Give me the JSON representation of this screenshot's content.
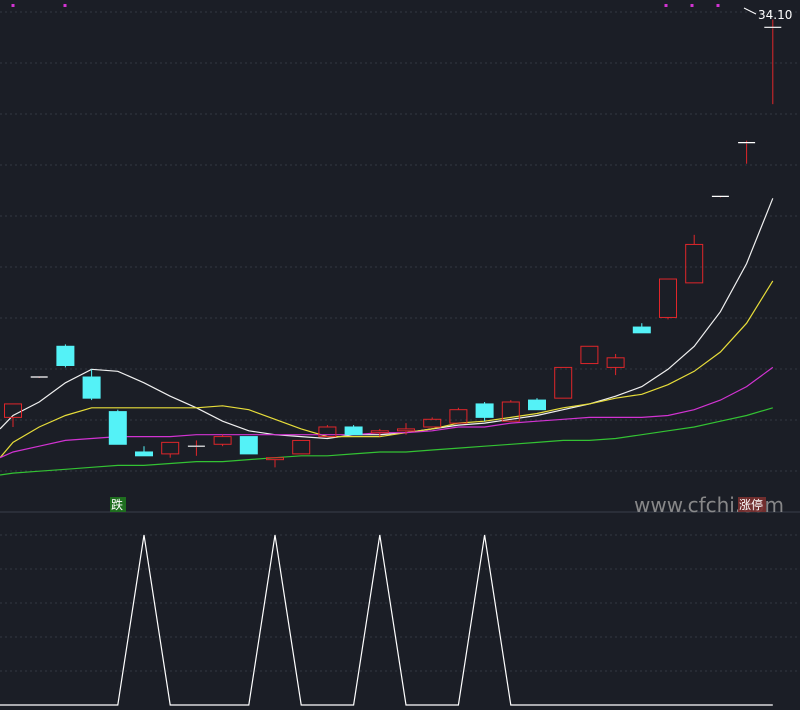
{
  "chart_data": {
    "type": "candlestick",
    "price_range": [
      9.5,
      35
    ],
    "colors": {
      "background": "#1b1e26",
      "up": "#e0262a",
      "down": "#54f2f7",
      "ma1": "#f0f0f0",
      "ma2": "#e7dd3a",
      "ma3": "#d233d2",
      "ma4": "#33c233",
      "indicator": "#ffffff",
      "grid": "#333842",
      "label_fall_bg": "#1f6e1f",
      "label_rise_bg": "#7a3030"
    },
    "candles": [
      {
        "o": 13.8,
        "h": 14.5,
        "l": 13.3,
        "c": 14.5
      },
      {
        "o": 15.9,
        "h": 15.9,
        "l": 15.9,
        "c": 15.9
      },
      {
        "o": 17.5,
        "h": 17.6,
        "l": 16.4,
        "c": 16.5
      },
      {
        "o": 15.9,
        "h": 16.3,
        "l": 14.7,
        "c": 14.8
      },
      {
        "o": 14.1,
        "h": 14.2,
        "l": 12.4,
        "c": 12.4
      },
      {
        "o": 12.0,
        "h": 12.3,
        "l": 11.8,
        "c": 11.8
      },
      {
        "o": 11.9,
        "h": 12.5,
        "l": 11.7,
        "c": 12.5
      },
      {
        "o": 12.3,
        "h": 12.6,
        "l": 11.8,
        "c": 12.3
      },
      {
        "o": 12.4,
        "h": 12.9,
        "l": 12.3,
        "c": 12.8
      },
      {
        "o": 12.8,
        "h": 12.8,
        "l": 11.9,
        "c": 11.9
      },
      {
        "o": 11.6,
        "h": 11.7,
        "l": 11.2,
        "c": 11.7
      },
      {
        "o": 11.9,
        "h": 12.6,
        "l": 11.9,
        "c": 12.6
      },
      {
        "o": 12.8,
        "h": 13.4,
        "l": 12.8,
        "c": 13.3
      },
      {
        "o": 13.3,
        "h": 13.4,
        "l": 12.9,
        "c": 12.9
      },
      {
        "o": 13.0,
        "h": 13.2,
        "l": 12.8,
        "c": 13.1
      },
      {
        "o": 13.1,
        "h": 13.5,
        "l": 12.9,
        "c": 13.2
      },
      {
        "o": 13.3,
        "h": 13.8,
        "l": 13.3,
        "c": 13.7
      },
      {
        "o": 13.5,
        "h": 14.3,
        "l": 13.5,
        "c": 14.2
      },
      {
        "o": 14.5,
        "h": 14.6,
        "l": 13.6,
        "c": 13.8
      },
      {
        "o": 13.6,
        "h": 14.7,
        "l": 13.6,
        "c": 14.6
      },
      {
        "o": 14.7,
        "h": 14.8,
        "l": 14.2,
        "c": 14.2
      },
      {
        "o": 14.8,
        "h": 16.4,
        "l": 14.8,
        "c": 16.4
      },
      {
        "o": 16.6,
        "h": 17.5,
        "l": 16.6,
        "c": 17.5
      },
      {
        "o": 16.4,
        "h": 17.1,
        "l": 16.0,
        "c": 16.9
      },
      {
        "o": 18.5,
        "h": 18.7,
        "l": 18.2,
        "c": 18.2
      },
      {
        "o": 19.0,
        "h": 21.0,
        "l": 18.9,
        "c": 21.0
      },
      {
        "o": 20.8,
        "h": 23.3,
        "l": 20.8,
        "c": 22.8
      },
      {
        "o": 25.3,
        "h": 25.3,
        "l": 25.3,
        "c": 25.3
      },
      {
        "o": 28.1,
        "h": 28.2,
        "l": 27.0,
        "c": 28.1
      },
      {
        "o": 34.1,
        "h": 34.5,
        "l": 30.1,
        "c": 34.1
      }
    ],
    "ma_series": [
      {
        "values": [
          13.9,
          14.6,
          15.6,
          16.3,
          16.2,
          15.6,
          14.9,
          14.3,
          13.6,
          13.1,
          12.9,
          12.8,
          12.7,
          12.9,
          12.9,
          13.0,
          13.2,
          13.4,
          13.5,
          13.7,
          13.9,
          14.2,
          14.5,
          14.9,
          15.4,
          16.3,
          17.5,
          19.3,
          21.8,
          25.2
        ]
      },
      {
        "values": [
          12.5,
          13.3,
          13.9,
          14.3,
          14.3,
          14.3,
          14.3,
          14.3,
          14.4,
          14.2,
          13.7,
          13.2,
          12.8,
          12.8,
          12.8,
          13.0,
          13.2,
          13.5,
          13.6,
          13.8,
          14.0,
          14.3,
          14.5,
          14.8,
          15.0,
          15.5,
          16.2,
          17.2,
          18.7,
          20.9
        ]
      },
      {
        "values": [
          12.0,
          12.3,
          12.6,
          12.7,
          12.8,
          12.8,
          12.8,
          12.9,
          12.9,
          12.9,
          12.9,
          12.9,
          12.9,
          12.9,
          13.0,
          13.0,
          13.1,
          13.3,
          13.3,
          13.5,
          13.6,
          13.7,
          13.8,
          13.8,
          13.8,
          13.9,
          14.2,
          14.7,
          15.4,
          16.4
        ]
      },
      {
        "values": [
          10.9,
          11.0,
          11.1,
          11.2,
          11.3,
          11.3,
          11.4,
          11.5,
          11.5,
          11.6,
          11.7,
          11.8,
          11.8,
          11.9,
          12.0,
          12.0,
          12.1,
          12.2,
          12.3,
          12.4,
          12.5,
          12.6,
          12.6,
          12.7,
          12.9,
          13.1,
          13.3,
          13.6,
          13.9,
          14.3
        ]
      }
    ],
    "indicator": {
      "range": [
        0,
        1
      ],
      "values": [
        0,
        0,
        0,
        0,
        0,
        1,
        0,
        0,
        0,
        0,
        1,
        0,
        0,
        0,
        1,
        0,
        0,
        0,
        1,
        0,
        0,
        0,
        0,
        0,
        0,
        0,
        0,
        0,
        0,
        0
      ]
    },
    "price_label": "34.10",
    "fall_label": "跌",
    "rise_label": "涨停",
    "watermark": "www.cfchi.com"
  }
}
